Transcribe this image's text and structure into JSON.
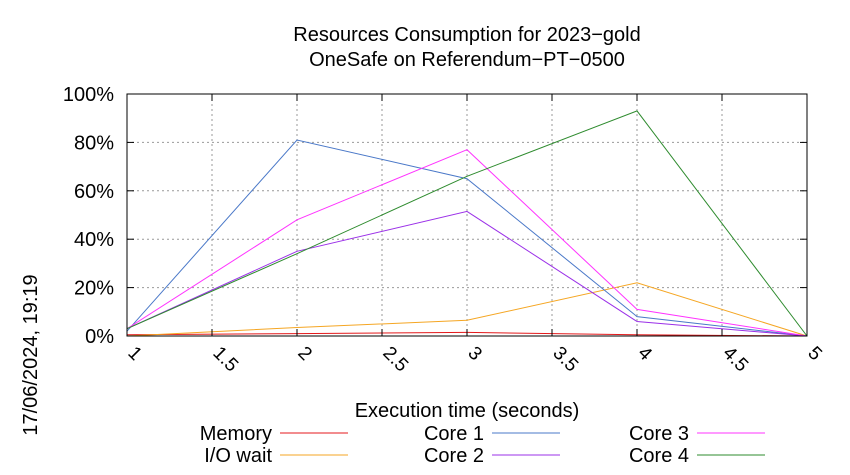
{
  "chart_data": {
    "type": "line",
    "title": "Resources Consumption for 2023−gold",
    "subtitle": "OneSafe on Referendum−PT−0500",
    "xlabel": "Execution time (seconds)",
    "ylabel": "",
    "timestamp": "17/06/2024, 19:19",
    "x": [
      1,
      2,
      3,
      4,
      5
    ],
    "xlim": [
      1,
      5
    ],
    "ylim": [
      0,
      100
    ],
    "x_ticks": [
      "1",
      "1.5",
      "2",
      "2.5",
      "3",
      "3.5",
      "4",
      "4.5",
      "5"
    ],
    "y_ticks": [
      "0%",
      "20%",
      "40%",
      "60%",
      "80%",
      "100%"
    ],
    "grid": true,
    "legend_position": "bottom",
    "series": [
      {
        "name": "Memory",
        "color": "#e41a1c",
        "values": [
          0.5,
          1,
          1.5,
          0.5,
          0
        ]
      },
      {
        "name": "I/O wait",
        "color": "#f5a623",
        "values": [
          0,
          3.5,
          6.5,
          22,
          0
        ]
      },
      {
        "name": "Core 1",
        "color": "#4a78c8",
        "values": [
          2,
          81,
          65,
          8,
          0
        ]
      },
      {
        "name": "Core 2",
        "color": "#9b30e8",
        "values": [
          3,
          35,
          51.5,
          6,
          0
        ]
      },
      {
        "name": "Core 3",
        "color": "#ff33ff",
        "values": [
          3,
          48,
          77,
          11,
          0
        ]
      },
      {
        "name": "Core 4",
        "color": "#2e8b2e",
        "values": [
          3,
          34,
          66,
          93,
          0
        ]
      }
    ]
  }
}
